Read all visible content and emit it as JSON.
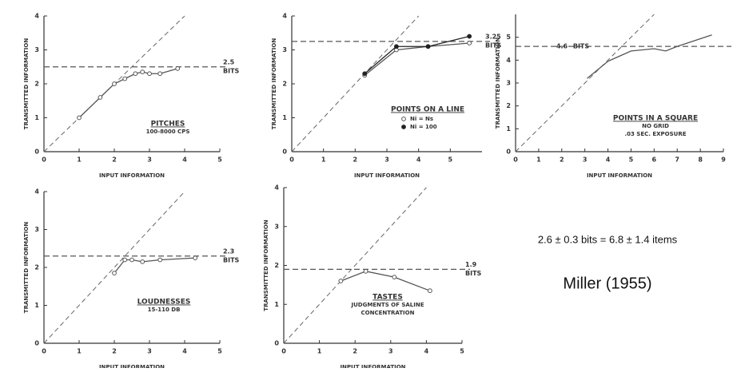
{
  "chart_data": [
    {
      "type": "line",
      "xlabel": "INPUT INFORMATION",
      "ylabel": "TRANSMITTED INFORMATION",
      "xlim": [
        0,
        5
      ],
      "ylim": [
        0,
        4
      ],
      "xticks": [
        0,
        1,
        2,
        3,
        4,
        5
      ],
      "yticks": [
        0,
        1,
        2,
        3,
        4
      ],
      "diagonal": true,
      "asymptote": {
        "value": 2.5,
        "label": "2.5",
        "unit": "BITS"
      },
      "notes": [
        "PITCHES",
        "100-8000 CPS"
      ],
      "series": [
        {
          "marker": "open",
          "color": "#555555",
          "x": [
            1,
            1.6,
            2,
            2.3,
            2.6,
            2.8,
            3,
            3.3,
            3.8
          ],
          "values": [
            1,
            1.6,
            2,
            2.15,
            2.3,
            2.35,
            2.3,
            2.3,
            2.45
          ]
        }
      ]
    },
    {
      "type": "line",
      "xlabel": "INPUT INFORMATION",
      "ylabel": "TRANSMITTED INFORMATION",
      "xlim": [
        0,
        6
      ],
      "ylim": [
        0,
        4
      ],
      "xticks": [
        0,
        1,
        2,
        3,
        4,
        5
      ],
      "yticks": [
        0,
        1,
        2,
        3,
        4
      ],
      "diagonal": true,
      "asymptote": {
        "value": 3.25,
        "label": "3.25",
        "unit": "BITS"
      },
      "notes": [
        "POINTS ON A LINE"
      ],
      "series": [
        {
          "name": "Ni = Ns",
          "marker": "open",
          "color": "#555555",
          "x": [
            2.3,
            3.3,
            4.3,
            5.6
          ],
          "values": [
            2.25,
            3.0,
            3.1,
            3.2
          ]
        },
        {
          "name": "Ni = 100",
          "marker": "filled",
          "color": "#222222",
          "x": [
            2.3,
            3.3,
            4.3,
            5.6
          ],
          "values": [
            2.3,
            3.1,
            3.1,
            3.4
          ]
        }
      ]
    },
    {
      "type": "line",
      "xlabel": "INPUT INFORMATION",
      "ylabel": "TRANSMITTED INFORMATION",
      "xlim": [
        0,
        9
      ],
      "ylim": [
        0,
        6
      ],
      "xticks": [
        0,
        1,
        2,
        3,
        4,
        5,
        6,
        7,
        8,
        9
      ],
      "yticks": [
        0,
        1,
        2,
        3,
        4,
        5
      ],
      "diagonal": true,
      "asymptote": {
        "value": 4.6,
        "label": "4.6",
        "unit": "BITS"
      },
      "notes": [
        "POINTS IN A SQUARE",
        "NO GRID",
        ".03 SEC. EXPOSURE"
      ],
      "series": [
        {
          "marker": "none",
          "color": "#555555",
          "x": [
            3.1,
            4,
            5,
            6,
            6.5,
            7,
            8.5
          ],
          "values": [
            3.2,
            3.95,
            4.4,
            4.5,
            4.4,
            4.6,
            5.1
          ]
        }
      ]
    },
    {
      "type": "line",
      "xlabel": "INPUT INFORMATION",
      "ylabel": "TRANSMITTED INFORMATION",
      "xlim": [
        0,
        5
      ],
      "ylim": [
        0,
        4
      ],
      "xticks": [
        0,
        1,
        2,
        3,
        4,
        5
      ],
      "yticks": [
        0,
        1,
        2,
        3,
        4
      ],
      "diagonal": true,
      "asymptote": {
        "value": 2.3,
        "label": "2.3",
        "unit": "BITS"
      },
      "notes": [
        "LOUDNESSES",
        "15-110 DB"
      ],
      "series": [
        {
          "marker": "open",
          "color": "#555555",
          "x": [
            2,
            2.3,
            2.5,
            2.8,
            3.3,
            4.3
          ],
          "values": [
            1.85,
            2.2,
            2.2,
            2.15,
            2.2,
            2.25
          ]
        }
      ]
    },
    {
      "type": "line",
      "xlabel": "INPUT INFORMATION",
      "ylabel": "TRANSMITTED INFORMATION",
      "xlim": [
        0,
        5
      ],
      "ylim": [
        0,
        4
      ],
      "xticks": [
        0,
        1,
        2,
        3,
        4,
        5
      ],
      "yticks": [
        0,
        1,
        2,
        3,
        4
      ],
      "diagonal": true,
      "asymptote": {
        "value": 1.9,
        "label": "1.9",
        "unit": "BITS"
      },
      "notes": [
        "TASTES",
        "JUDGMENTS OF SALINE",
        "CONCENTRATION"
      ],
      "series": [
        {
          "marker": "open",
          "color": "#555555",
          "x": [
            1.6,
            2.3,
            3.1,
            4.1
          ],
          "values": [
            1.6,
            1.85,
            1.7,
            1.35
          ]
        }
      ]
    }
  ],
  "caption": {
    "summary": "2.6 ± 0.3 bits = 6.8 ± 1.4 items",
    "citation": "Miller (1955)"
  }
}
